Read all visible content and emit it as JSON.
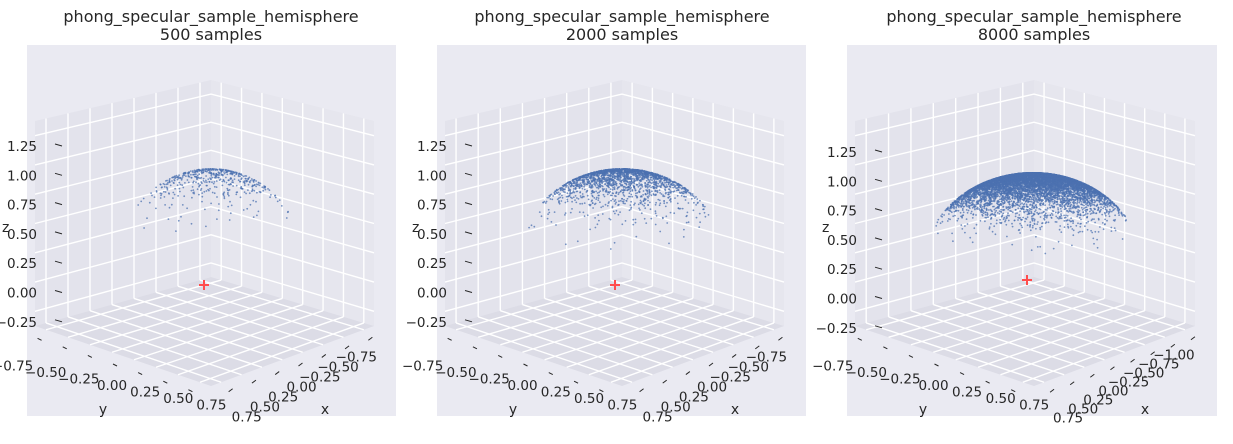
{
  "chart_data": [
    {
      "type": "scatter",
      "subtype": "3d-scatter",
      "title": "phong_specular_sample_hemisphere",
      "subtitle": "500 samples",
      "n_samples": 500,
      "xlabel": "x",
      "ylabel": "y",
      "zlabel": "z",
      "xticks": [
        "0.75",
        "0.50",
        "0.25",
        "0.00",
        "−0.25",
        "−0.50",
        "−0.75"
      ],
      "yticks": [
        "−0.75",
        "−0.50",
        "−0.25",
        "0.00",
        "0.25",
        "0.50",
        "0.75"
      ],
      "zticks": [
        "−0.25",
        "0.00",
        "0.25",
        "0.50",
        "0.75",
        "1.00",
        "1.25"
      ],
      "xlim": [
        -0.85,
        0.85
      ],
      "ylim": [
        -0.85,
        0.85
      ],
      "zlim": [
        -0.3,
        1.35
      ],
      "marker": {
        "x": 0,
        "y": 0,
        "z": 0
      },
      "point_color": "#4c72b0",
      "marker_color": "#ff4d4d",
      "background": "#eaeaf2"
    },
    {
      "type": "scatter",
      "subtype": "3d-scatter",
      "title": "phong_specular_sample_hemisphere",
      "subtitle": "2000 samples",
      "n_samples": 2000,
      "xlabel": "x",
      "ylabel": "y",
      "zlabel": "z",
      "xticks": [
        "0.75",
        "0.50",
        "0.25",
        "0.00",
        "−0.25",
        "−0.50",
        "−0.75"
      ],
      "yticks": [
        "−0.75",
        "−0.50",
        "−0.25",
        "0.00",
        "0.25",
        "0.50",
        "0.75"
      ],
      "zticks": [
        "−0.25",
        "0.00",
        "0.25",
        "0.50",
        "0.75",
        "1.00",
        "1.25"
      ],
      "xlim": [
        -0.85,
        0.85
      ],
      "ylim": [
        -0.85,
        0.85
      ],
      "zlim": [
        -0.3,
        1.35
      ],
      "marker": {
        "x": 0,
        "y": 0,
        "z": 0
      },
      "point_color": "#4c72b0",
      "marker_color": "#ff4d4d",
      "background": "#eaeaf2"
    },
    {
      "type": "scatter",
      "subtype": "3d-scatter",
      "title": "phong_specular_sample_hemisphere",
      "subtitle": "8000 samples",
      "n_samples": 8000,
      "xlabel": "x",
      "ylabel": "y",
      "zlabel": "z",
      "xticks": [
        "0.75",
        "0.50",
        "0.25",
        "0.00",
        "−0.25",
        "−0.50",
        "−0.75",
        "−1.00"
      ],
      "yticks": [
        "−0.75",
        "−0.50",
        "−0.25",
        "0.00",
        "0.25",
        "0.50",
        "0.75"
      ],
      "zticks": [
        "−0.25",
        "0.00",
        "0.25",
        "0.50",
        "0.75",
        "1.00",
        "1.25"
      ],
      "xlim": [
        -1.05,
        0.85
      ],
      "ylim": [
        -0.85,
        0.85
      ],
      "zlim": [
        -0.3,
        1.35
      ],
      "marker": {
        "x": 0,
        "y": 0,
        "z": 0
      },
      "point_color": "#4c72b0",
      "marker_color": "#ff4d4d",
      "background": "#eaeaf2"
    }
  ]
}
